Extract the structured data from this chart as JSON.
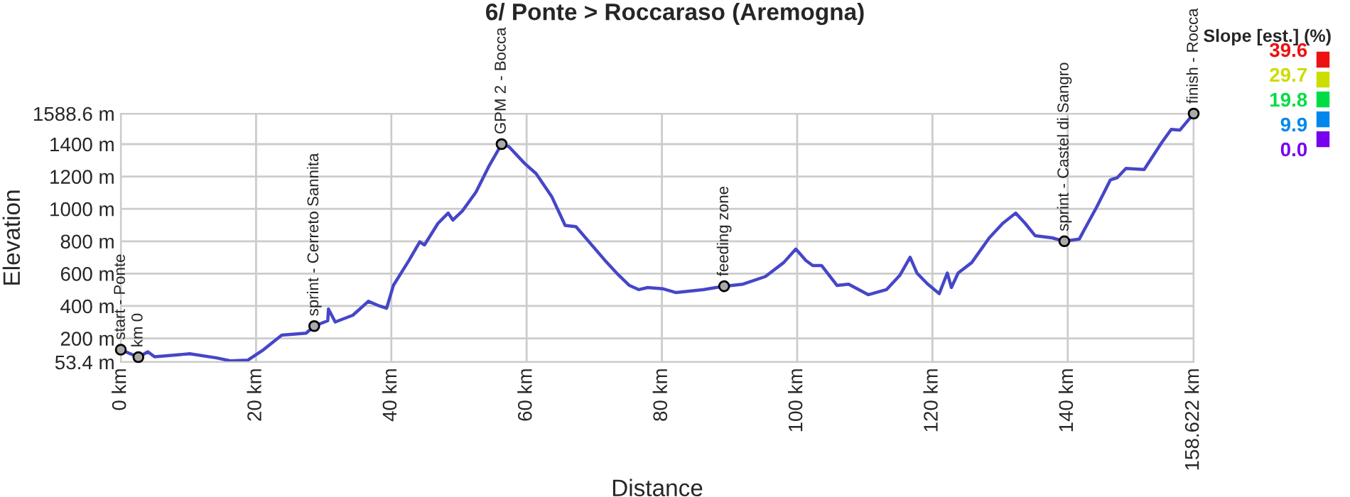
{
  "chart_data": {
    "type": "line",
    "title": "6/ Ponte > Roccaraso (Aremogna)",
    "xlabel": "Distance",
    "ylabel": "Elevation",
    "x": [
      0,
      2.6,
      4.0,
      5.0,
      10.2,
      14.2,
      16.2,
      18.8,
      21.1,
      23.8,
      27.4,
      28.6,
      30.6,
      30.7,
      31.7,
      34.3,
      36.6,
      38.0,
      39.3,
      40.3,
      42.6,
      44.2,
      44.9,
      46.9,
      48.4,
      49.1,
      50.5,
      52.5,
      54.5,
      56.3,
      57.4,
      59.7,
      61.4,
      63.7,
      65.7,
      67.3,
      71.6,
      73.6,
      75.2,
      76.6,
      77.9,
      80.2,
      82.1,
      86.1,
      89.2,
      92.0,
      95.3,
      98.0,
      99.8,
      101.3,
      102.3,
      103.6,
      105.9,
      107.6,
      110.5,
      113.2,
      115.2,
      116.7,
      117.7,
      119.2,
      121.0,
      122.2,
      122.8,
      123.8,
      125.8,
      128.4,
      130.4,
      132.3,
      133.7,
      135.2,
      137.7,
      139.5,
      141.7,
      144.3,
      146.3,
      147.3,
      148.6,
      151.3,
      153.9,
      155.3,
      156.6,
      158.622
    ],
    "series": [
      {
        "color": "#4646c8",
        "values": [
          130,
          84,
          117,
          86,
          105,
          79,
          61,
          66,
          130,
          220,
          232,
          276,
          309,
          381,
          301,
          343,
          429,
          404,
          386,
          527,
          681,
          796,
          777,
          911,
          974,
          931,
          987,
          1103,
          1269,
          1400,
          1384,
          1281,
          1218,
          1077,
          898,
          890,
          681,
          591,
          527,
          501,
          514,
          506,
          483,
          501,
          522,
          535,
          582,
          668,
          752,
          681,
          650,
          650,
          527,
          535,
          470,
          501,
          591,
          701,
          604,
          539,
          476,
          604,
          514,
          604,
          668,
          821,
          911,
          974,
          911,
          834,
          821,
          800,
          813,
          1013,
          1179,
          1192,
          1250,
          1243,
          1410,
          1491,
          1487,
          1588.6
        ]
      }
    ],
    "annotations": [
      {
        "text": "start - Ponte",
        "x": 0,
        "y": 130
      },
      {
        "text": "km 0",
        "x": 2.6,
        "y": 84
      },
      {
        "text": "sprint - Cerreto Sannita",
        "x": 28.6,
        "y": 276
      },
      {
        "text": "GPM 2 - Bocca",
        "x": 56.3,
        "y": 1400
      },
      {
        "text": "feeding zone",
        "x": 89.2,
        "y": 522
      },
      {
        "text": "sprint - Castel di Sangro",
        "x": 139.5,
        "y": 800
      },
      {
        "text": "finish - Rocca",
        "x": 158.622,
        "y": 1588.6
      }
    ],
    "xlim": [
      0,
      158.622
    ],
    "xticks": [
      {
        "value": 0,
        "label": "0 km"
      },
      {
        "value": 20,
        "label": "20 km"
      },
      {
        "value": 40,
        "label": "40 km"
      },
      {
        "value": 60,
        "label": "60 km"
      },
      {
        "value": 80,
        "label": "80 km"
      },
      {
        "value": 100,
        "label": "100 km"
      },
      {
        "value": 120,
        "label": "120 km"
      },
      {
        "value": 140,
        "label": "140 km"
      },
      {
        "value": 158.622,
        "label": "158.622 km"
      }
    ],
    "ylim": [
      53.4,
      1588.6
    ],
    "yticks": [
      {
        "value": 53.4,
        "label": "53.4 m"
      },
      {
        "value": 200,
        "label": "200 m"
      },
      {
        "value": 400,
        "label": "400 m"
      },
      {
        "value": 600,
        "label": "600 m"
      },
      {
        "value": 800,
        "label": "800 m"
      },
      {
        "value": 1000,
        "label": "1000 m"
      },
      {
        "value": 1200,
        "label": "1200 m"
      },
      {
        "value": 1400,
        "label": "1400 m"
      },
      {
        "value": 1588.6,
        "label": "1588.6 m"
      }
    ],
    "clabel": "Slope [est.] (%)",
    "clim": [
      0,
      39.6
    ],
    "cticks": [
      {
        "value": 0,
        "label": "0.0"
      },
      9.9,
      19.8,
      29.7,
      39.6
    ],
    "colors": [
      "#7700ee",
      "#0088ee",
      "#00dd44",
      "#ccdd00",
      "#ee1111"
    ],
    "grid": true,
    "legend": false,
    "marker": "none",
    "line_style": "solid"
  }
}
